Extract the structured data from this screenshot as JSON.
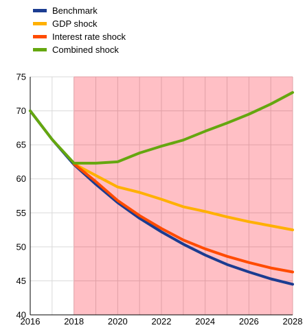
{
  "chart_data": {
    "type": "line",
    "xlim": [
      2016,
      2028
    ],
    "ylim": [
      40,
      75
    ],
    "x_ticks": [
      "2016",
      "2018",
      "2020",
      "2022",
      "2024",
      "2026",
      "2028"
    ],
    "y_ticks": [
      "40",
      "45",
      "50",
      "55",
      "60",
      "65",
      "70",
      "75"
    ],
    "shaded_region": {
      "x_start": 2018,
      "x_end": 2028,
      "color": "#ffbfc5"
    },
    "series": [
      {
        "name": "Benchmark",
        "color": "#1b3c91",
        "x": [
          2016,
          2017,
          2018,
          2019,
          2020,
          2021,
          2022,
          2023,
          2024,
          2025,
          2026,
          2027,
          2028
        ],
        "y": [
          70.0,
          65.8,
          62.1,
          59.2,
          56.5,
          54.2,
          52.2,
          50.4,
          48.8,
          47.4,
          46.3,
          45.3,
          44.5
        ]
      },
      {
        "name": "GDP shock",
        "color": "#ffb000",
        "x": [
          2018,
          2019,
          2020,
          2021,
          2022,
          2023,
          2024,
          2025,
          2026,
          2027,
          2028
        ],
        "y": [
          62.2,
          60.5,
          58.8,
          58.0,
          57.0,
          55.9,
          55.2,
          54.4,
          53.7,
          53.1,
          52.5
        ]
      },
      {
        "name": "Interest rate shock",
        "color": "#ff4b00",
        "x": [
          2018,
          2019,
          2020,
          2021,
          2022,
          2023,
          2024,
          2025,
          2026,
          2027,
          2028
        ],
        "y": [
          62.2,
          59.6,
          56.8,
          54.6,
          52.7,
          51.0,
          49.7,
          48.6,
          47.7,
          46.9,
          46.3
        ]
      },
      {
        "name": "Combined shock",
        "color": "#65a70f",
        "x": [
          2016,
          2017,
          2018,
          2019,
          2020,
          2021,
          2022,
          2023,
          2024,
          2025,
          2026,
          2027,
          2028
        ],
        "y": [
          70.0,
          65.8,
          62.3,
          62.3,
          62.5,
          63.8,
          64.8,
          65.7,
          67.0,
          68.2,
          69.5,
          71.0,
          72.7
        ]
      }
    ]
  }
}
